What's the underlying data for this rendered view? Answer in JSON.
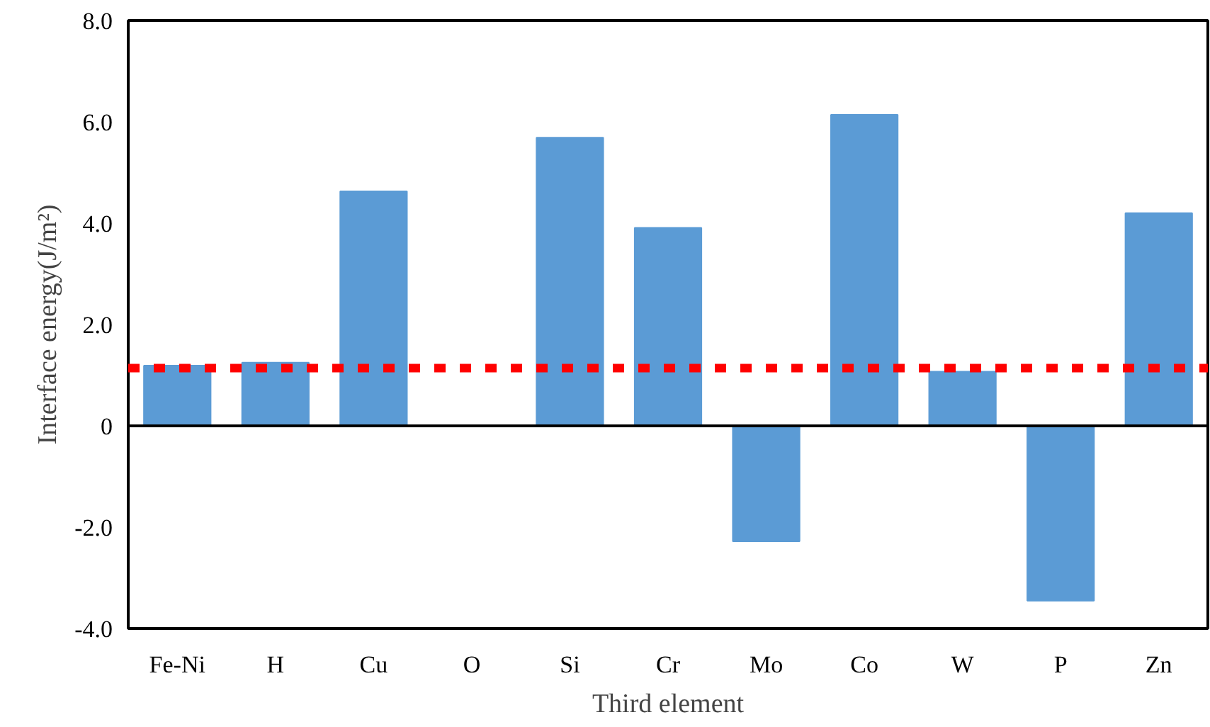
{
  "chart_data": {
    "type": "bar",
    "xlabel": "Third element",
    "ylabel": "Interface energy(J/m²)",
    "categories": [
      "Fe-Ni",
      "H",
      "Cu",
      "O",
      "Si",
      "Cr",
      "Mo",
      "Co",
      "W",
      "P",
      "Zn"
    ],
    "values": [
      1.19,
      1.25,
      4.63,
      0,
      5.69,
      3.91,
      -2.28,
      6.14,
      1.07,
      -3.45,
      4.2
    ],
    "color": "#5b9bd5",
    "ylim": [
      -4,
      8
    ],
    "yticks": [
      {
        "value": -4,
        "label": "-4.0"
      },
      {
        "value": -2,
        "label": "-2.0"
      },
      0,
      {
        "value": 2,
        "label": "2.0"
      },
      {
        "value": 4,
        "label": "4.0"
      },
      {
        "value": 6,
        "label": "6.0"
      },
      {
        "value": 8,
        "label": "8.0"
      }
    ],
    "ref_lines": [
      {
        "axis": "y",
        "value": 1.14,
        "color": "#ff0000",
        "line_style": "dotted"
      }
    ],
    "stacked": false
  }
}
